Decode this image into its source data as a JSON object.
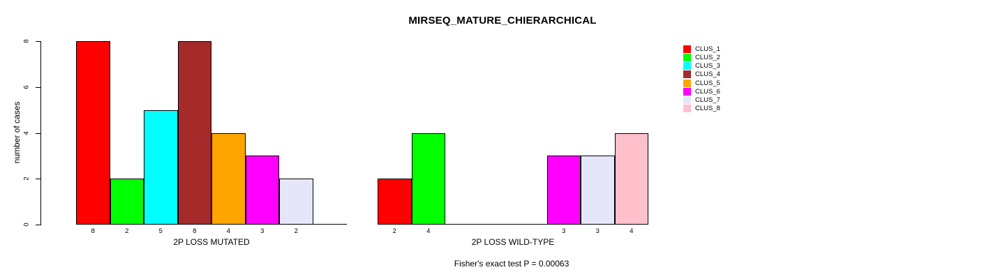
{
  "title": "MIRSEQ_MATURE_CHIERARCHICAL",
  "footer": "Fisher's exact test P = 0.00063",
  "y_axis": {
    "label": "number of cases",
    "ticks": [
      0,
      2,
      4,
      6,
      8
    ],
    "range": [
      0,
      8
    ]
  },
  "legend": {
    "position": "right",
    "entries": [
      {
        "label": "CLUS_1",
        "color": "#FF0000"
      },
      {
        "label": "CLUS_2",
        "color": "#00FF00"
      },
      {
        "label": "CLUS_3",
        "color": "#00FFFF"
      },
      {
        "label": "CLUS_4",
        "color": "#A52A2A"
      },
      {
        "label": "CLUS_5",
        "color": "#FFA500"
      },
      {
        "label": "CLUS_6",
        "color": "#FF00FF"
      },
      {
        "label": "CLUS_7",
        "color": "#E6E6FA"
      },
      {
        "label": "CLUS_8",
        "color": "#FFC0CB"
      }
    ]
  },
  "chart_data": [
    {
      "type": "bar",
      "title": "MIRSEQ_MATURE_CHIERARCHICAL",
      "xlabel": "2P LOSS MUTATED",
      "ylabel": "number of cases",
      "ylim": [
        0,
        8
      ],
      "yticks": [
        0,
        2,
        4,
        6,
        8
      ],
      "grid": false,
      "legend_position": "right",
      "categories": [
        "CLUS_1",
        "CLUS_2",
        "CLUS_3",
        "CLUS_4",
        "CLUS_5",
        "CLUS_6",
        "CLUS_7",
        "CLUS_8"
      ],
      "values": [
        8,
        2,
        5,
        8,
        4,
        3,
        2,
        0
      ],
      "bar_labels": [
        "8",
        "2",
        "5",
        "8",
        "4",
        "3",
        "2",
        ""
      ],
      "colors": [
        "#FF0000",
        "#00FF00",
        "#00FFFF",
        "#A52A2A",
        "#FFA500",
        "#FF00FF",
        "#E6E6FA",
        "#FFC0CB"
      ]
    },
    {
      "type": "bar",
      "title": "MIRSEQ_MATURE_CHIERARCHICAL",
      "xlabel": "2P LOSS WILD-TYPE",
      "ylabel": "number of cases",
      "ylim": [
        0,
        8
      ],
      "yticks": [
        0,
        2,
        4,
        6,
        8
      ],
      "grid": false,
      "legend_position": "right",
      "categories": [
        "CLUS_1",
        "CLUS_2",
        "CLUS_3",
        "CLUS_4",
        "CLUS_5",
        "CLUS_6",
        "CLUS_7",
        "CLUS_8"
      ],
      "values": [
        2,
        4,
        0,
        0,
        0,
        3,
        3,
        4
      ],
      "bar_labels": [
        "2",
        "4",
        "",
        "",
        "",
        "3",
        "3",
        "4"
      ],
      "colors": [
        "#FF0000",
        "#00FF00",
        "#00FFFF",
        "#A52A2A",
        "#FFA500",
        "#FF00FF",
        "#E6E6FA",
        "#FFC0CB"
      ]
    }
  ]
}
